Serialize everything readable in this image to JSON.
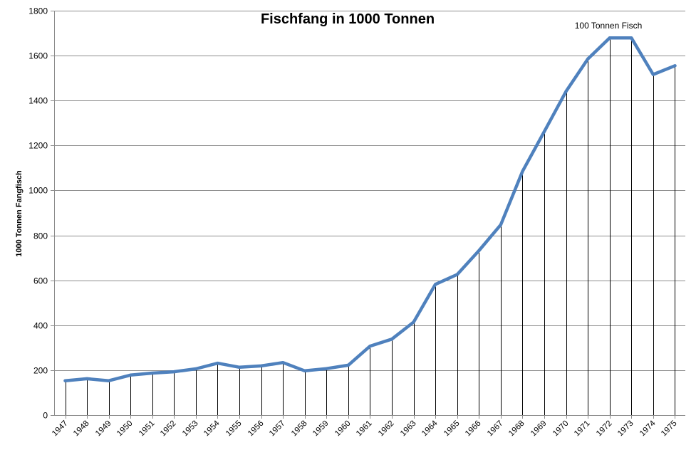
{
  "chart_data": {
    "type": "line",
    "title": "Fischfang in 1000 Tonnen",
    "xlabel": "",
    "ylabel": "1000 Tonnen Fangfisch",
    "annotation": "100 Tonnen Fisch",
    "ylim": [
      0,
      1800
    ],
    "yticks": [
      0,
      200,
      400,
      600,
      800,
      1000,
      1200,
      1400,
      1600,
      1800
    ],
    "grid": true,
    "drop_lines": true,
    "line_color": "#4f81bd",
    "categories": [
      "1947",
      "1948",
      "1949",
      "1950",
      "1951",
      "1952",
      "1953",
      "1954",
      "1955",
      "1956",
      "1957",
      "1958",
      "1959",
      "1960",
      "1961",
      "1962",
      "1963",
      "1964",
      "1965",
      "1966",
      "1967",
      "1968",
      "1969",
      "1970",
      "1971",
      "1972",
      "1973",
      "1974",
      "1975"
    ],
    "series": [
      {
        "values": [
          153,
          162,
          153,
          178,
          187,
          193,
          206,
          231,
          213,
          219,
          234,
          197,
          207,
          222,
          307,
          338,
          414,
          582,
          626,
          732,
          847,
          1085,
          1262,
          1441,
          1585,
          1679,
          1679,
          1516,
          1555
        ]
      }
    ]
  }
}
